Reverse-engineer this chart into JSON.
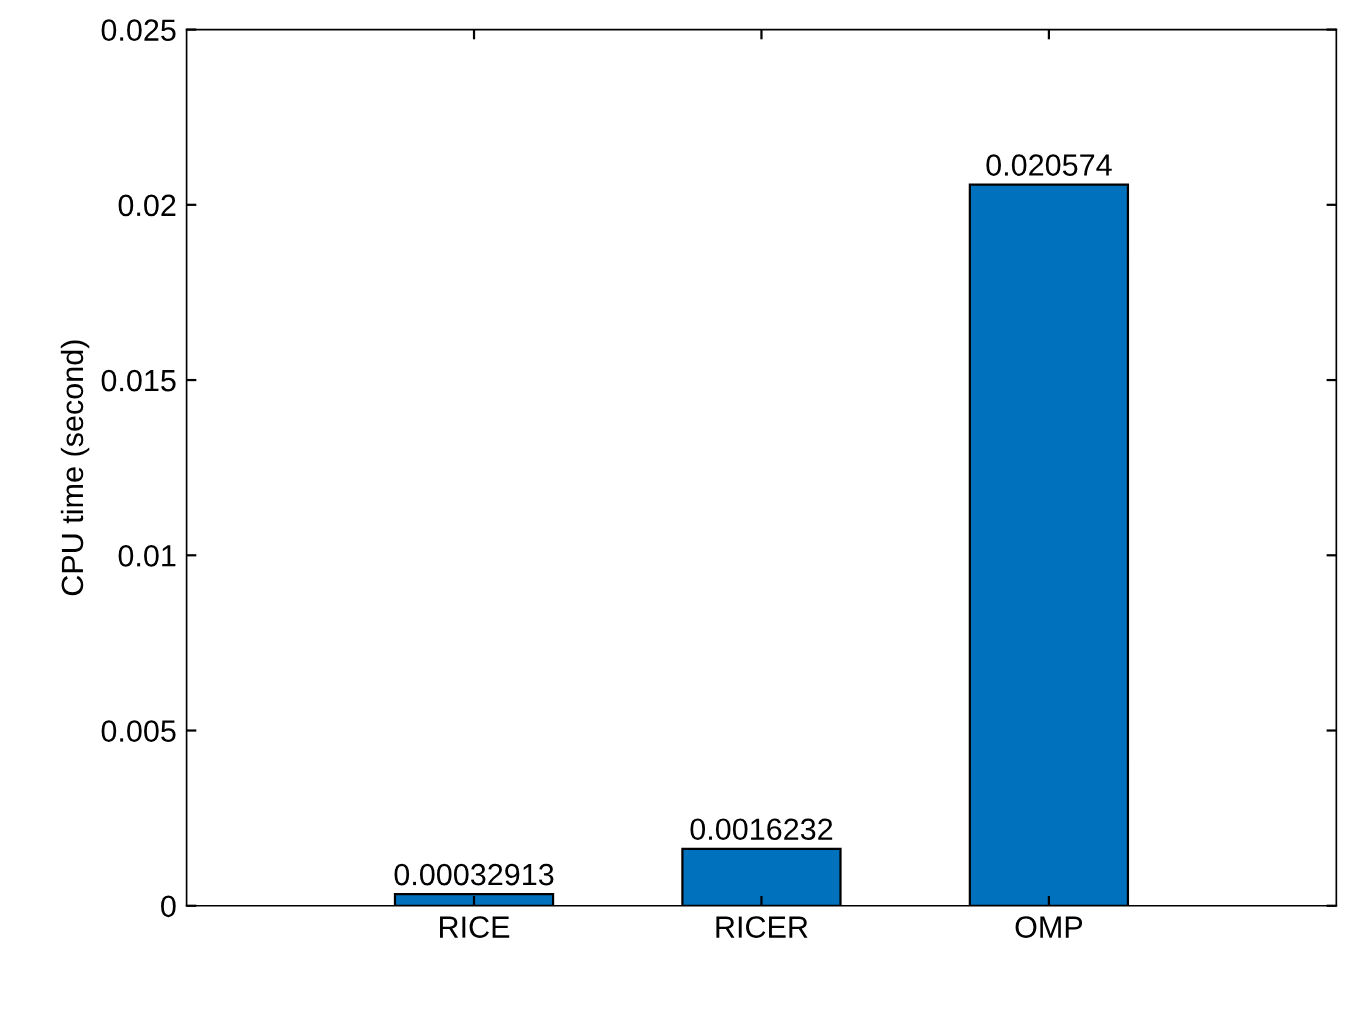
{
  "chart_data": {
    "type": "bar",
    "ylabel": "CPU time (second)",
    "categories": [
      "RICE",
      "RICER",
      "OMP"
    ],
    "values": [
      0.00032913,
      0.0016232,
      0.020574
    ],
    "color": "#0072bd",
    "ylim": [
      0,
      0.025
    ],
    "yticks": [
      0,
      0.005,
      0.01,
      0.015,
      0.02,
      0.025
    ],
    "data_labels": true,
    "grid": false,
    "legend": false
  }
}
